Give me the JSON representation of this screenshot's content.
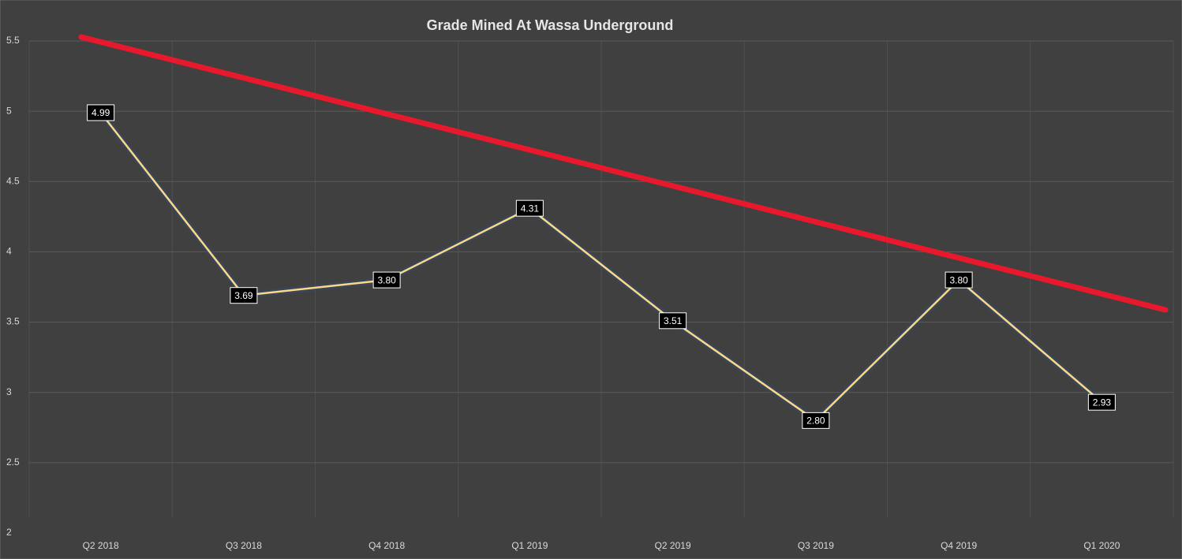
{
  "chart_data": {
    "type": "line",
    "title": "Grade Mined At Wassa Underground",
    "categories": [
      "Q2 2018",
      "Q3 2018",
      "Q4 2018",
      "Q1 2019",
      "Q2 2019",
      "Q3 2019",
      "Q4 2019",
      "Q1 2020"
    ],
    "values": [
      4.99,
      3.69,
      3.8,
      4.31,
      3.51,
      2.8,
      3.8,
      2.93
    ],
    "value_labels": [
      "4.99",
      "3.69",
      "3.80",
      "4.31",
      "3.51",
      "2.80",
      "3.80",
      "2.93"
    ],
    "color": "#f7d98a",
    "ylim": [
      2,
      5.5
    ],
    "yticks": [
      2,
      2.5,
      3,
      3.5,
      4,
      4.5,
      5,
      5.5
    ],
    "grid": true
  }
}
